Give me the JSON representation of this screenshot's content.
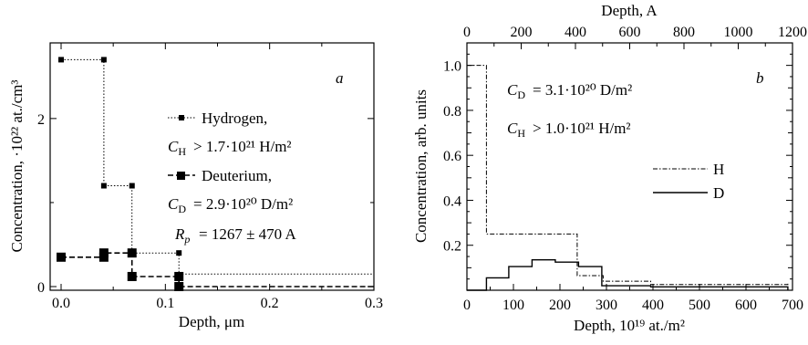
{
  "chart_data": [
    {
      "type": "step-line",
      "panel_letter": "a",
      "xlabel": "Depth, μm",
      "ylabel": "Concentration, ·10²² at./cm³",
      "xlim": [
        0,
        0.3
      ],
      "ylim": [
        0,
        2.9
      ],
      "xticks": [
        0.0,
        0.1,
        0.2,
        0.3
      ],
      "xtick_labels": [
        "0.0",
        "0.1",
        "0.2",
        "0.3"
      ],
      "yticks": [
        0,
        2
      ],
      "ytick_labels": [
        "0",
        "2"
      ],
      "series": [
        {
          "name": "Hydrogen,",
          "style": "dotted",
          "marker": "small-square",
          "points": [
            [
              0.0,
              2.7
            ],
            [
              0.041,
              2.7
            ],
            [
              0.041,
              1.2
            ],
            [
              0.068,
              1.2
            ],
            [
              0.068,
              0.4
            ],
            [
              0.113,
              0.4
            ],
            [
              0.113,
              0.15
            ],
            [
              0.3,
              0.15
            ]
          ],
          "marker_points": [
            [
              0.0,
              2.7
            ],
            [
              0.041,
              2.7
            ],
            [
              0.041,
              1.2
            ],
            [
              0.068,
              1.2
            ],
            [
              0.068,
              0.4
            ],
            [
              0.113,
              0.4
            ]
          ]
        },
        {
          "name": "Deuterium,",
          "style": "dashed",
          "marker": "large-square",
          "points": [
            [
              0.0,
              0.35
            ],
            [
              0.041,
              0.35
            ],
            [
              0.041,
              0.4
            ],
            [
              0.068,
              0.4
            ],
            [
              0.068,
              0.12
            ],
            [
              0.113,
              0.12
            ],
            [
              0.113,
              0.0
            ],
            [
              0.3,
              0.0
            ]
          ],
          "marker_points": [
            [
              0.0,
              0.35
            ],
            [
              0.041,
              0.35
            ],
            [
              0.041,
              0.4
            ],
            [
              0.068,
              0.4
            ],
            [
              0.068,
              0.12
            ],
            [
              0.113,
              0.12
            ],
            [
              0.113,
              0.0
            ]
          ]
        }
      ],
      "annotations": {
        "hydrogen_legend": "Hydrogen,",
        "ch_value": "> 1.7·10²¹ H/m²",
        "deuterium_legend": "Deuterium,",
        "cd_value": "= 2.9·10²⁰ D/m²",
        "rp_value": "= 1267 ± 470 A"
      }
    },
    {
      "type": "step-line",
      "panel_letter": "b",
      "xlabel": "Depth, 10¹⁹ at./m²",
      "x2label": "Depth, A",
      "ylabel": "Concentration, arb. units",
      "xlim": [
        0,
        700
      ],
      "x2lim": [
        0,
        1200
      ],
      "ylim": [
        0,
        1.1
      ],
      "xticks": [
        0,
        100,
        200,
        300,
        400,
        500,
        600,
        700
      ],
      "x2ticks": [
        0,
        200,
        400,
        600,
        800,
        1000,
        1200
      ],
      "yticks": [
        0.2,
        0.4,
        0.6,
        0.8,
        1.0
      ],
      "ytick_labels": [
        "0.2",
        "0.4",
        "0.6",
        "0.8",
        "1.0"
      ],
      "series": [
        {
          "name": "H",
          "style": "dash-dot",
          "points": [
            [
              0,
              1.0
            ],
            [
              42,
              1.0
            ],
            [
              42,
              0.25
            ],
            [
              237,
              0.25
            ],
            [
              237,
              0.065
            ],
            [
              293,
              0.065
            ],
            [
              293,
              0.04
            ],
            [
              395,
              0.04
            ],
            [
              395,
              0.025
            ],
            [
              690,
              0.025
            ],
            [
              690,
              0.035
            ]
          ]
        },
        {
          "name": "D",
          "style": "solid",
          "points": [
            [
              0,
              0.0
            ],
            [
              42,
              0.0
            ],
            [
              42,
              0.055
            ],
            [
              90,
              0.055
            ],
            [
              90,
              0.105
            ],
            [
              140,
              0.105
            ],
            [
              140,
              0.135
            ],
            [
              190,
              0.135
            ],
            [
              190,
              0.125
            ],
            [
              240,
              0.125
            ],
            [
              240,
              0.105
            ],
            [
              290,
              0.105
            ],
            [
              290,
              0.02
            ],
            [
              395,
              0.02
            ],
            [
              395,
              0.015
            ],
            [
              690,
              0.015
            ],
            [
              690,
              0.0
            ]
          ]
        }
      ],
      "annotations": {
        "cd_value": "= 3.1·10²⁰ D/m²",
        "ch_value": "> 1.0·10²¹ H/m²"
      }
    }
  ]
}
